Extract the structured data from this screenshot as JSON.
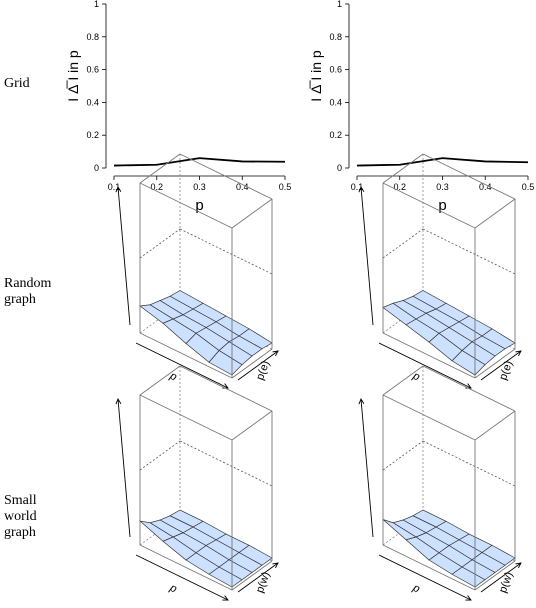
{
  "row_labels": {
    "grid": "Grid",
    "random": "Random\ngraph",
    "small_world": "Small\nworld\ngraph"
  },
  "chart_data": [
    {
      "type": "line",
      "row": "Grid",
      "title": "",
      "xlabel": "p",
      "ylabel": "I Δ̅ I in p",
      "x": [
        0.1,
        0.2,
        0.3,
        0.4,
        0.5
      ],
      "y": [
        0.015,
        0.02,
        0.06,
        0.04,
        0.038
      ],
      "xlim": [
        0.1,
        0.5
      ],
      "ylim": [
        0,
        1
      ],
      "xticks": [
        "0.1",
        "0.2",
        "0.3",
        "0.4",
        "0.5"
      ],
      "yticks": [
        "0",
        "0.2",
        "0.4",
        "0.6",
        "0.8",
        "1"
      ],
      "grid": false
    },
    {
      "type": "line",
      "row": "Grid",
      "title": "",
      "xlabel": "p",
      "ylabel": "I Δ̅ I in p",
      "x": [
        0.1,
        0.2,
        0.3,
        0.4,
        0.5
      ],
      "y": [
        0.015,
        0.02,
        0.06,
        0.04,
        0.035
      ],
      "xlim": [
        0.1,
        0.5
      ],
      "ylim": [
        0,
        1
      ],
      "xticks": [
        "0.1",
        "0.2",
        "0.3",
        "0.4",
        "0.5"
      ],
      "yticks": [
        "0",
        "0.2",
        "0.4",
        "0.6",
        "0.8",
        "1"
      ],
      "grid": false
    },
    {
      "type": "surface",
      "row": "Random graph",
      "xlabel": "p",
      "ylabel": "p(e)",
      "zlim": [
        0,
        1
      ],
      "surface_color": "#cce0ff",
      "z": [
        [
          0.18,
          0.14,
          0.12,
          0.1,
          0.09
        ],
        [
          0.14,
          0.12,
          0.1,
          0.09,
          0.08
        ],
        [
          0.08,
          0.1,
          0.09,
          0.08,
          0.07
        ],
        [
          0.03,
          0.06,
          0.07,
          0.06,
          0.06
        ],
        [
          0.02,
          0.04,
          0.05,
          0.05,
          0.04
        ]
      ]
    },
    {
      "type": "surface",
      "row": "Random graph",
      "xlabel": "p",
      "ylabel": "p(e)",
      "zlim": [
        0,
        1
      ],
      "surface_color": "#cce0ff",
      "z": [
        [
          0.17,
          0.15,
          0.12,
          0.1,
          0.09
        ],
        [
          0.13,
          0.12,
          0.11,
          0.09,
          0.08
        ],
        [
          0.09,
          0.1,
          0.09,
          0.08,
          0.07
        ],
        [
          0.04,
          0.06,
          0.07,
          0.06,
          0.06
        ],
        [
          0.02,
          0.04,
          0.05,
          0.05,
          0.04
        ]
      ]
    },
    {
      "type": "surface",
      "row": "Small world graph",
      "xlabel": "p",
      "ylabel": "p(w)",
      "zlim": [
        0,
        1
      ],
      "surface_color": "#cce0ff",
      "z": [
        [
          0.16,
          0.1,
          0.07,
          0.05,
          0.04
        ],
        [
          0.1,
          0.08,
          0.06,
          0.05,
          0.04
        ],
        [
          0.05,
          0.05,
          0.05,
          0.04,
          0.03
        ],
        [
          0.03,
          0.03,
          0.03,
          0.03,
          0.03
        ],
        [
          0.02,
          0.02,
          0.02,
          0.02,
          0.02
        ]
      ]
    },
    {
      "type": "surface",
      "row": "Small world graph",
      "xlabel": "p",
      "ylabel": "p(w)",
      "zlim": [
        0,
        1
      ],
      "surface_color": "#cce0ff",
      "z": [
        [
          0.17,
          0.1,
          0.07,
          0.05,
          0.04
        ],
        [
          0.11,
          0.08,
          0.06,
          0.05,
          0.04
        ],
        [
          0.05,
          0.05,
          0.05,
          0.04,
          0.03
        ],
        [
          0.03,
          0.03,
          0.03,
          0.03,
          0.03
        ],
        [
          0.02,
          0.02,
          0.02,
          0.02,
          0.02
        ]
      ]
    }
  ]
}
